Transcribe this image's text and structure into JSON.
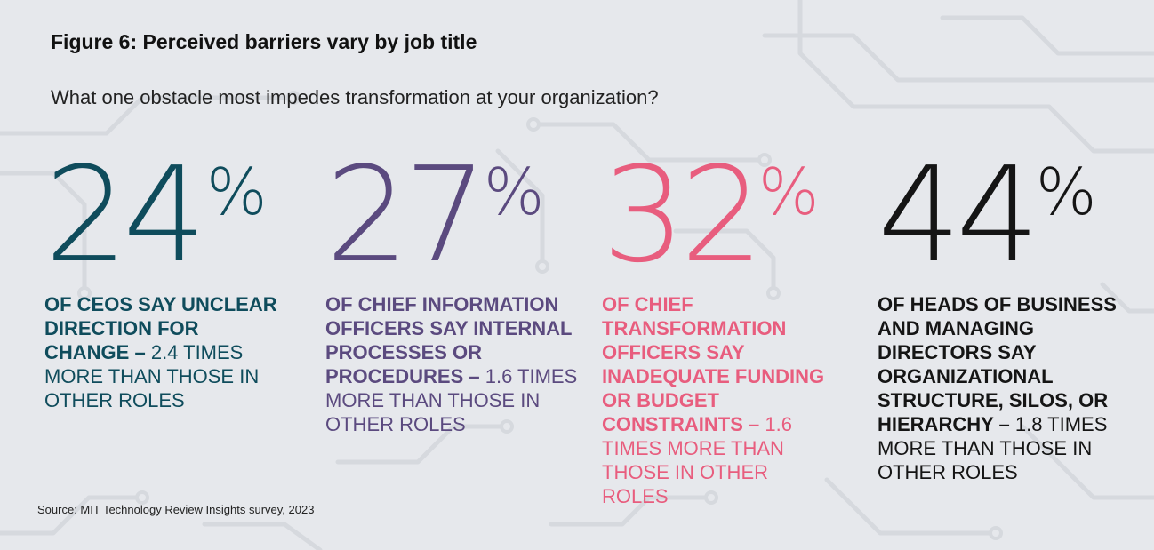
{
  "header": {
    "title": "Figure 6: Perceived barriers vary by job title",
    "subtitle": "What one obstacle most impedes transformation at your organization?"
  },
  "source": "Source: MIT Technology Review Insights survey, 2023",
  "chart_data": {
    "type": "table",
    "items": [
      {
        "value": 24,
        "unit": "%",
        "value_label": "24",
        "unit_label": "%",
        "color": "#0f4c5c",
        "bold_text": "OF CEOS SAY UNCLEAR DIRECTION FOR CHANGE",
        "dash": " –",
        "regular_text": "2.4 TIMES MORE THAN THOSE IN OTHER ROLES",
        "role": "CEOs",
        "obstacle": "Unclear direction for change",
        "times_more": 2.4
      },
      {
        "value": 27,
        "unit": "%",
        "value_label": "27",
        "unit_label": "%",
        "color": "#5b4a7f",
        "bold_text": "OF CHIEF INFORMATION OFFICERS SAY INTERNAL PROCESSES OR PROCEDURES",
        "dash": " –",
        "regular_text": "1.6 TIMES MORE THAN THOSE IN OTHER ROLES",
        "role": "Chief information officers",
        "obstacle": "Internal processes or procedures",
        "times_more": 1.6
      },
      {
        "value": 32,
        "unit": "%",
        "value_label": "32",
        "unit_label": "%",
        "color": "#e85d7e",
        "bold_text": "OF CHIEF TRANSFORMATION OFFICERS SAY INADEQUATE FUNDING OR BUDGET CONSTRAINTS",
        "dash": " –",
        "regular_text": "1.6 TIMES MORE THAN THOSE IN OTHER ROLES",
        "role": "Chief transformation officers",
        "obstacle": "Inadequate funding or budget constraints",
        "times_more": 1.6
      },
      {
        "value": 44,
        "unit": "%",
        "value_label": "44",
        "unit_label": "%",
        "color": "#151515",
        "bold_text": "OF HEADS OF BUSINESS AND MANAGING DIRECTORS SAY ORGANIZATIONAL STRUCTURE, SILOS, OR HIERARCHY",
        "dash": " –",
        "regular_text": "1.8 TIMES MORE THAN THOSE IN OTHER ROLES",
        "role": "Heads of business and managing directors",
        "obstacle": "Organizational structure, silos, or hierarchy",
        "times_more": 1.8
      }
    ]
  }
}
